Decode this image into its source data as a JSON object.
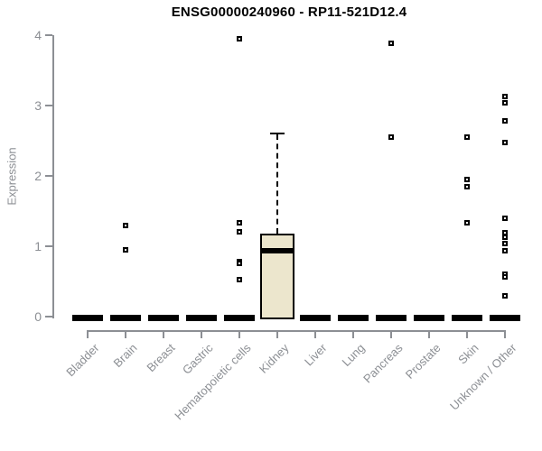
{
  "title": "ENSG00000240960 - RP11-521D12.4",
  "colors": {
    "background": "#ffffff",
    "title": "#000000",
    "axis": "#8c8f94",
    "tick_label": "#8c8f94",
    "box_fill": "#ece6cd",
    "box_border": "#000000",
    "median": "#000000",
    "outlier": "#000000"
  },
  "chart_data": {
    "type": "boxplot",
    "title": "ENSG00000240960 - RP11-521D12.4",
    "xlabel": "",
    "ylabel": "Expression",
    "ylim": [
      0,
      4
    ],
    "yticks": [
      0,
      1,
      2,
      3,
      4
    ],
    "grid": false,
    "legend": false,
    "categories": [
      "Bladder",
      "Brain",
      "Breast",
      "Gastric",
      "Hematopoietic cells",
      "Kidney",
      "Liver",
      "Lung",
      "Pancreas",
      "Prostate",
      "Skin",
      "Unknown / Other"
    ],
    "boxes": [
      {
        "category": "Bladder",
        "q1": 0,
        "median": 0,
        "q3": 0,
        "whisker_low": 0,
        "whisker_high": 0,
        "outliers": []
      },
      {
        "category": "Brain",
        "q1": 0,
        "median": 0,
        "q3": 0,
        "whisker_low": 0,
        "whisker_high": 0,
        "outliers": [
          1.3,
          0.95
        ]
      },
      {
        "category": "Breast",
        "q1": 0,
        "median": 0,
        "q3": 0,
        "whisker_low": 0,
        "whisker_high": 0,
        "outliers": []
      },
      {
        "category": "Gastric",
        "q1": 0,
        "median": 0,
        "q3": 0,
        "whisker_low": 0,
        "whisker_high": 0,
        "outliers": []
      },
      {
        "category": "Hematopoietic cells",
        "q1": 0,
        "median": 0,
        "q3": 0,
        "whisker_low": 0,
        "whisker_high": 0,
        "outliers": [
          3.95,
          1.33,
          1.2,
          0.78,
          0.76,
          0.53
        ]
      },
      {
        "category": "Kidney",
        "q1": 0,
        "median": 0.93,
        "q3": 1.18,
        "whisker_low": 0,
        "whisker_high": 2.6,
        "outliers": []
      },
      {
        "category": "Liver",
        "q1": 0,
        "median": 0,
        "q3": 0,
        "whisker_low": 0,
        "whisker_high": 0,
        "outliers": []
      },
      {
        "category": "Lung",
        "q1": 0,
        "median": 0,
        "q3": 0,
        "whisker_low": 0,
        "whisker_high": 0,
        "outliers": []
      },
      {
        "category": "Pancreas",
        "q1": 0,
        "median": 0,
        "q3": 0,
        "whisker_low": 0,
        "whisker_high": 0,
        "outliers": [
          3.88,
          2.55
        ]
      },
      {
        "category": "Prostate",
        "q1": 0,
        "median": 0,
        "q3": 0,
        "whisker_low": 0,
        "whisker_high": 0,
        "outliers": []
      },
      {
        "category": "Skin",
        "q1": 0,
        "median": 0,
        "q3": 0,
        "whisker_low": 0,
        "whisker_high": 0,
        "outliers": [
          2.55,
          1.95,
          1.85,
          1.33
        ]
      },
      {
        "category": "Unknown / Other",
        "q1": 0,
        "median": 0,
        "q3": 0,
        "whisker_low": 0,
        "whisker_high": 0,
        "outliers": [
          3.13,
          3.04,
          2.78,
          2.47,
          1.4,
          1.19,
          1.13,
          1.04,
          0.94,
          0.6,
          0.57,
          0.29
        ]
      }
    ]
  },
  "layout_hints": {
    "marker_glyph": "open-square",
    "whisker_style": "dashed",
    "x_label_rotation_deg": 45
  }
}
